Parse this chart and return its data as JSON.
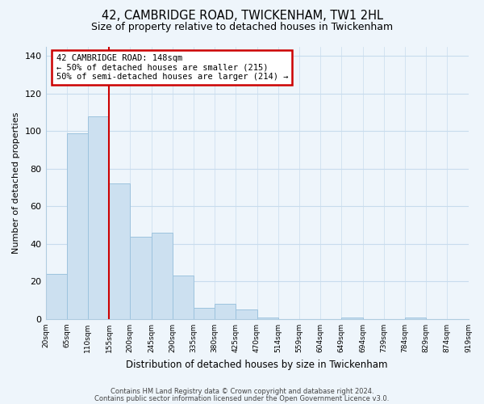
{
  "title": "42, CAMBRIDGE ROAD, TWICKENHAM, TW1 2HL",
  "subtitle": "Size of property relative to detached houses in Twickenham",
  "xlabel": "Distribution of detached houses by size in Twickenham",
  "ylabel": "Number of detached properties",
  "bar_values": [
    24,
    99,
    108,
    72,
    44,
    46,
    23,
    6,
    8,
    5,
    1,
    0,
    0,
    0,
    1,
    0,
    0,
    1,
    0,
    0
  ],
  "bar_labels": [
    "20sqm",
    "65sqm",
    "110sqm",
    "155sqm",
    "200sqm",
    "245sqm",
    "290sqm",
    "335sqm",
    "380sqm",
    "425sqm",
    "470sqm",
    "514sqm",
    "559sqm",
    "604sqm",
    "649sqm",
    "694sqm",
    "739sqm",
    "784sqm",
    "829sqm",
    "874sqm",
    "919sqm"
  ],
  "bar_color": "#cce0f0",
  "bar_edge_color": "#9dc3de",
  "vline_color": "#cc0000",
  "annotation_text": "42 CAMBRIDGE ROAD: 148sqm\n← 50% of detached houses are smaller (215)\n50% of semi-detached houses are larger (214) →",
  "annotation_box_color": "white",
  "annotation_box_edge": "#cc0000",
  "ylim": [
    0,
    145
  ],
  "yticks": [
    0,
    20,
    40,
    60,
    80,
    100,
    120,
    140
  ],
  "footnote1": "Contains HM Land Registry data © Crown copyright and database right 2024.",
  "footnote2": "Contains public sector information licensed under the Open Government Licence v3.0.",
  "background_color": "#eef5fb",
  "grid_color": "#c8dced"
}
